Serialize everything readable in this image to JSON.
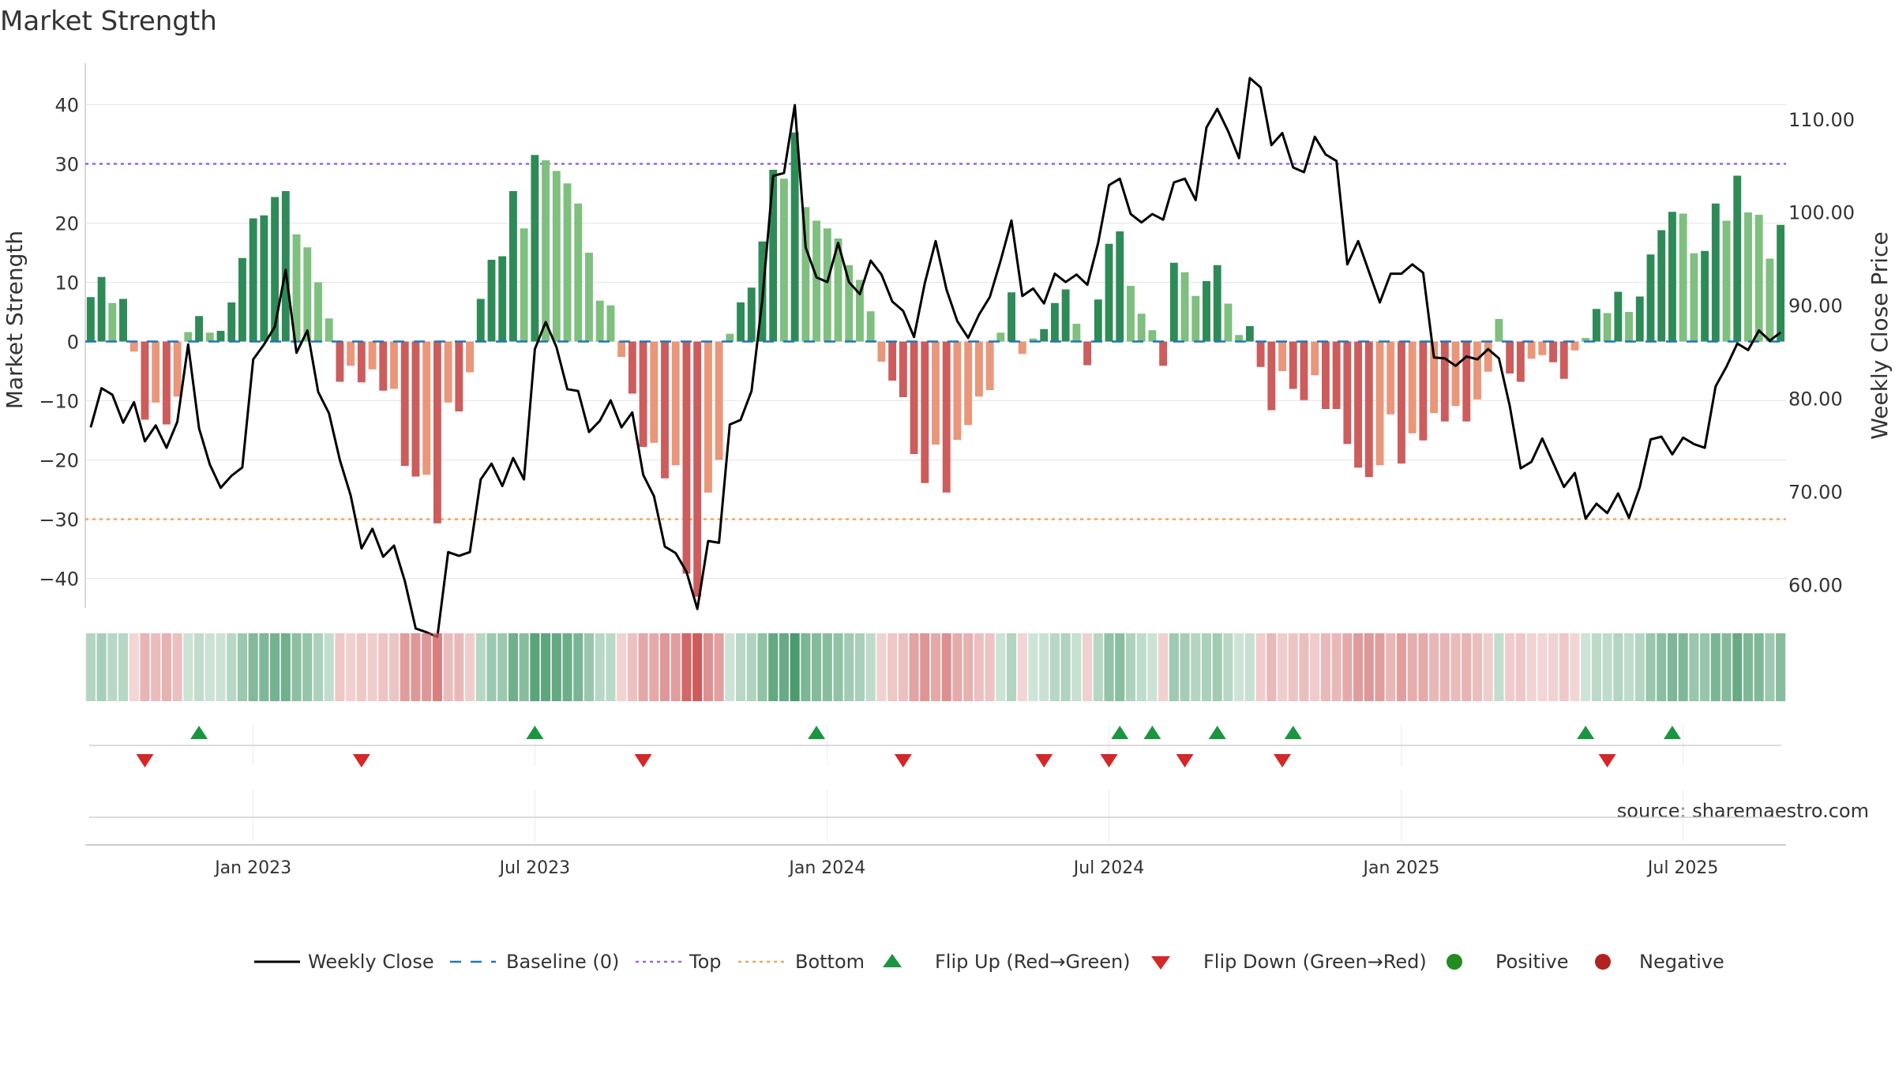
{
  "chart_data": {
    "type": "bar+line",
    "title": "Market Strength",
    "ylabel_left": "Market Strength",
    "ylabel_right": "Weekly Close Price",
    "source": "source: sharemaestro.com",
    "ylim_left": [
      -45,
      47
    ],
    "ylim_right": [
      57.5,
      116
    ],
    "left_ticks": [
      {
        "v": 40,
        "label": "40"
      },
      {
        "v": 30,
        "label": "30"
      },
      {
        "v": 20,
        "label": "20"
      },
      {
        "v": 10,
        "label": "10"
      },
      {
        "v": 0,
        "label": "0"
      },
      {
        "v": -10,
        "label": "−10"
      },
      {
        "v": -20,
        "label": "−20"
      },
      {
        "v": -30,
        "label": "−30"
      },
      {
        "v": -40,
        "label": "−40"
      }
    ],
    "right_ticks": [
      {
        "v": 110,
        "label": "110.00"
      },
      {
        "v": 100,
        "label": "100.00"
      },
      {
        "v": 90,
        "label": "90.00"
      },
      {
        "v": 80,
        "label": "80.00"
      },
      {
        "v": 70,
        "label": "70.00"
      },
      {
        "v": 60,
        "label": "60.00"
      }
    ],
    "x_ticks": [
      {
        "i": 15,
        "label": "Jan 2023"
      },
      {
        "i": 41,
        "label": "Jul 2023"
      },
      {
        "i": 68,
        "label": "Jan 2024"
      },
      {
        "i": 94,
        "label": "Jul 2024"
      },
      {
        "i": 121,
        "label": "Jan 2025"
      },
      {
        "i": 147,
        "label": "Jul 2025"
      }
    ],
    "strength": [
      7.5,
      10.9,
      6.5,
      7.2,
      -1.7,
      -13.2,
      -10.3,
      -14,
      -9.3,
      1.6,
      4.3,
      1.5,
      1.8,
      6.6,
      14.1,
      20.8,
      21.3,
      24.4,
      25.4,
      18.1,
      15.9,
      10,
      3.9,
      -6.8,
      -4.1,
      -6.9,
      -4.7,
      -8.3,
      -8,
      -21,
      -22.8,
      -22.5,
      -30.7,
      -10.3,
      -11.8,
      -5.2,
      7.2,
      13.8,
      14.4,
      25.4,
      19.1,
      31.5,
      30.6,
      28.8,
      26.7,
      23.3,
      15,
      6.9,
      6.1,
      -2.6,
      -8.8,
      -17.8,
      -17.1,
      -23.1,
      -20.9,
      -39.2,
      -43.1,
      -25.5,
      -20,
      1.3,
      6.6,
      9.1,
      16.9,
      29,
      27.5,
      35.3,
      22.7,
      20.4,
      19.1,
      17.4,
      12.9,
      10.4,
      5.1,
      -3.4,
      -6.6,
      -9.4,
      -19,
      -23.9,
      -17.4,
      -25.5,
      -16.6,
      -14.1,
      -9.3,
      -8.2,
      1.5,
      8.3,
      -2.1,
      0.5,
      2.1,
      6.5,
      8.8,
      3,
      -4,
      7.1,
      16.5,
      18.6,
      9.4,
      4.7,
      1.9,
      -4.1,
      13.3,
      11.7,
      7.7,
      10.2,
      12.9,
      6.4,
      1.1,
      2.6,
      -4.3,
      -11.6,
      -5,
      -8,
      -9.9,
      -5.7,
      -11.4,
      -11.4,
      -17.3,
      -21.3,
      -22.9,
      -20.9,
      -12.3,
      -20.6,
      -15.5,
      -16.7,
      -12.1,
      -13.5,
      -10.9,
      -13.5,
      -9.8,
      -5.1,
      3.8,
      -5.4,
      -6.8,
      -2.9,
      -2.3,
      -3.5,
      -6.3,
      -1.5,
      0.6,
      5.5,
      4.8,
      8.4,
      5,
      7.6,
      14.7,
      18.8,
      21.9,
      21.6,
      14.9,
      15.3,
      23.3,
      20.4,
      28,
      21.8,
      21.4,
      14,
      19.7
    ],
    "series_line": {
      "name": "Weekly Close",
      "values": [
        76.9,
        81.1,
        80.4,
        77.4,
        79.6,
        75.4,
        77.1,
        74.7,
        77.5,
        85.8,
        76.8,
        72.9,
        70.4,
        71.7,
        72.6,
        84.2,
        85.8,
        87.7,
        93.8,
        84.9,
        87.3,
        80.7,
        78.4,
        73.4,
        69.6,
        63.9,
        66,
        63,
        64.2,
        60.4,
        55.3,
        54.9,
        54.4,
        63.5,
        63.1,
        63.5,
        71.3,
        73,
        70.6,
        73.6,
        71.3,
        85.3,
        88.2,
        85.5,
        81,
        80.8,
        76.4,
        77.6,
        79.8,
        76.9,
        78.5,
        71.8,
        69.5,
        64.1,
        63.4,
        61.4,
        57.4,
        64.7,
        64.5,
        77.2,
        77.7,
        80.8,
        90.6,
        103.9,
        104.2,
        111.5,
        96.2,
        93,
        92.5,
        96.7,
        92.5,
        91.2,
        94.8,
        93.3,
        90.4,
        89.4,
        86.6,
        92.4,
        96.9,
        91.7,
        88.3,
        86.5,
        89,
        90.9,
        94.8,
        99.1,
        91,
        91.8,
        90.2,
        93.4,
        92.5,
        93.3,
        92.2,
        96.7,
        102.9,
        103.6,
        99.8,
        98.9,
        99.8,
        99.2,
        103.2,
        103.6,
        101.3,
        109.1,
        111.1,
        108.7,
        105.8,
        114.4,
        113.4,
        107.2,
        108.5,
        104.8,
        104.3,
        108.1,
        106.2,
        105.5,
        94.4,
        96.9,
        93.6,
        90.3,
        93.4,
        93.4,
        94.4,
        93.5,
        84.4,
        84.3,
        83.5,
        84.5,
        84.2,
        85.3,
        84.3,
        79.2,
        72.5,
        73.2,
        75.7,
        73.1,
        70.5,
        72,
        67.1,
        68.7,
        67.7,
        69.8,
        67.2,
        70.5,
        75.6,
        75.9,
        74,
        75.8,
        75.1,
        74.7,
        81.3,
        83.4,
        85.9,
        85.2,
        87.3,
        86.2,
        87.1
      ]
    },
    "thresholds": {
      "baseline": 0,
      "top": 30,
      "bottom": -30
    },
    "flips_up": [
      10,
      41,
      67,
      95,
      98,
      104,
      111,
      138,
      146
    ],
    "flips_down": [
      5,
      25,
      51,
      75,
      88,
      94,
      101,
      110,
      140
    ],
    "legend": [
      {
        "key": "weekly_close",
        "label": "Weekly Close"
      },
      {
        "key": "baseline",
        "label": "Baseline (0)"
      },
      {
        "key": "top",
        "label": "Top"
      },
      {
        "key": "bottom",
        "label": "Bottom"
      },
      {
        "key": "flip_up",
        "label": "Flip Up (Red→Green)"
      },
      {
        "key": "flip_down",
        "label": "Flip Down (Green→Red)"
      },
      {
        "key": "positive",
        "label": "Positive"
      },
      {
        "key": "negative",
        "label": "Negative"
      }
    ],
    "colors": {
      "positive_dark": "#2e8b57",
      "positive_light": "#7fbf7f",
      "negative_dark": "#cd5c5c",
      "negative_light": "#e9967a",
      "line": "#000000",
      "baseline": "#1f77b4",
      "top": "#9966dd",
      "bottom": "#f4a460",
      "flip_up": "#1a9641",
      "flip_down": "#d62728",
      "positive_dot": "#228b22",
      "negative_dot": "#b22222",
      "grid": "#e6e6e6",
      "axis": "#cccccc",
      "text": "#333333"
    }
  }
}
